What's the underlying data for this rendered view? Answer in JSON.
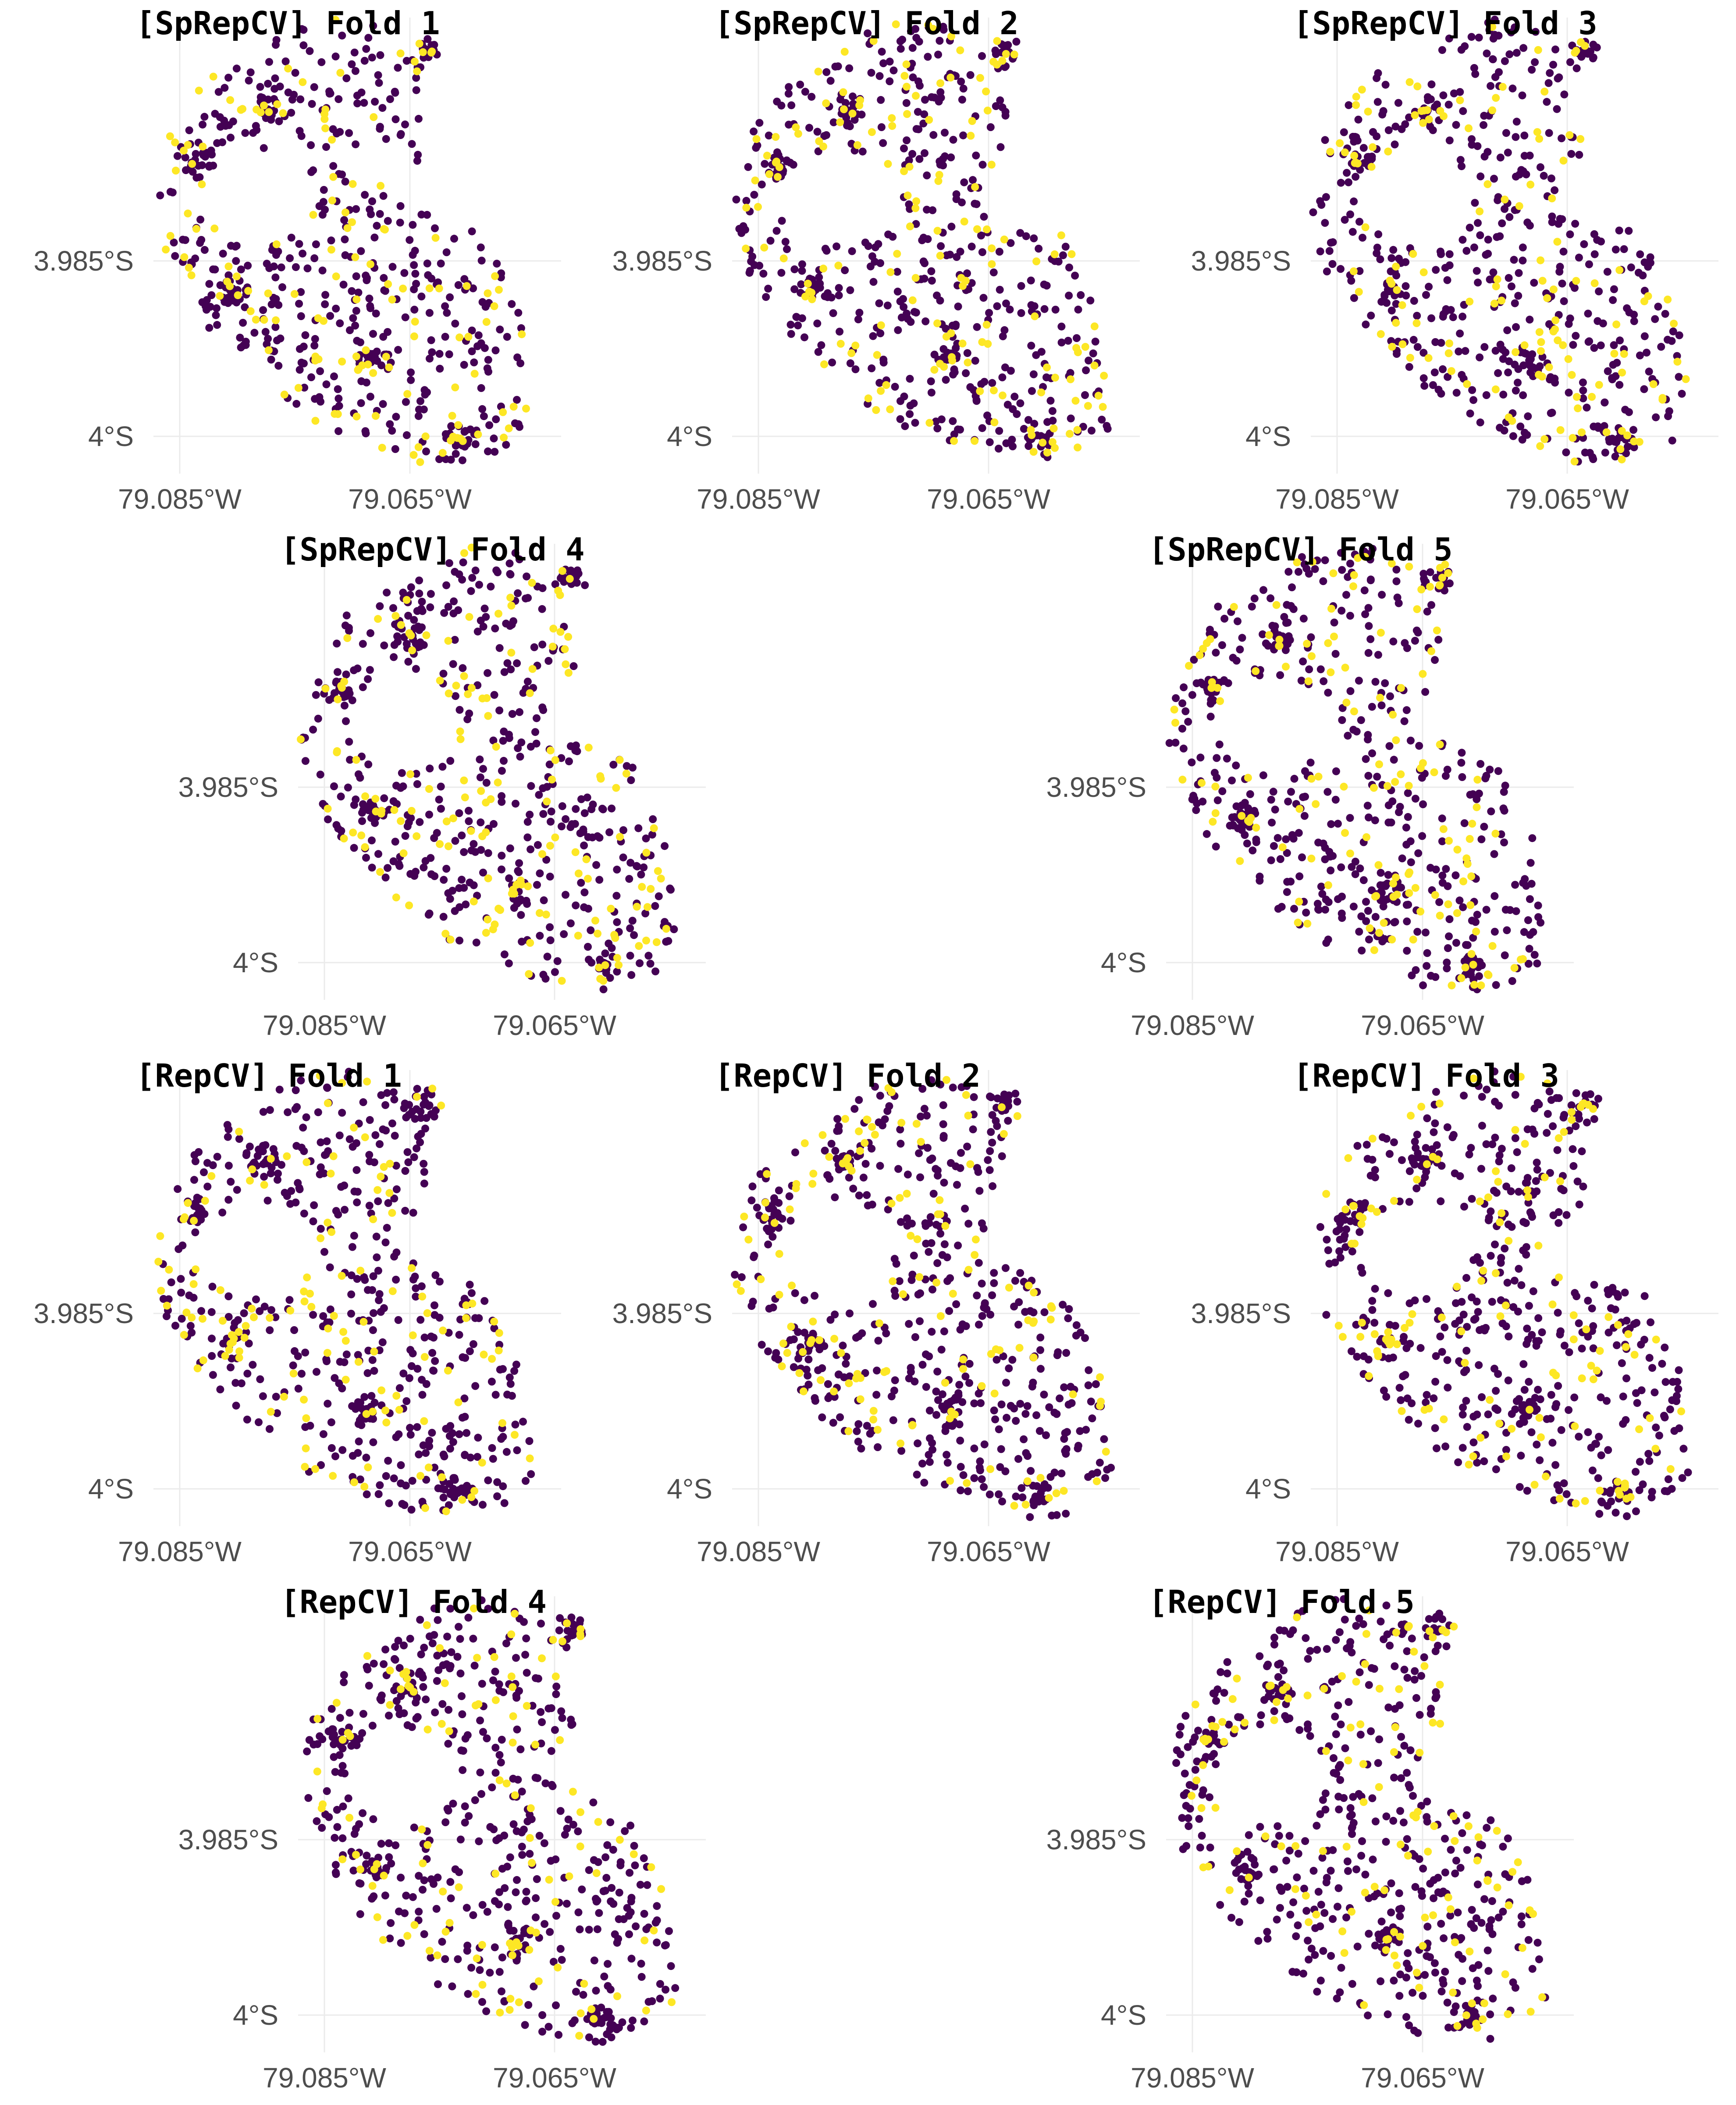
{
  "figure": {
    "colors": {
      "training": "#440154",
      "test": "#fde725",
      "grid": "#ebebeb",
      "tick_text": "#4d4d4d"
    }
  },
  "chart_data": [
    {
      "type": "scatter",
      "title": "[SpRepCV] Fold 1",
      "seed": 11,
      "x_ticks": [
        "79.085°W",
        "79.065°W"
      ],
      "y_ticks": [
        "3.985°S",
        "4°S"
      ]
    },
    {
      "type": "scatter",
      "title": "[SpRepCV] Fold 2",
      "seed": 23,
      "x_ticks": [
        "79.085°W",
        "79.065°W"
      ],
      "y_ticks": [
        "3.985°S",
        "4°S"
      ]
    },
    {
      "type": "scatter",
      "title": "[SpRepCV] Fold 3",
      "seed": 37,
      "x_ticks": [
        "79.085°W",
        "79.065°W"
      ],
      "y_ticks": [
        "3.985°S",
        "4°S"
      ]
    },
    {
      "type": "scatter",
      "title": "[SpRepCV] Fold 4",
      "seed": 41,
      "x_ticks": [
        "79.085°W",
        "79.065°W"
      ],
      "y_ticks": [
        "3.985°S",
        "4°S"
      ]
    },
    {
      "type": "scatter",
      "title": "[SpRepCV] Fold 5",
      "seed": 53,
      "x_ticks": [
        "79.085°W",
        "79.065°W"
      ],
      "y_ticks": [
        "3.985°S",
        "4°S"
      ]
    },
    {
      "type": "scatter",
      "title": "[RepCV] Fold 1",
      "seed": 67,
      "x_ticks": [
        "79.085°W",
        "79.065°W"
      ],
      "y_ticks": [
        "3.985°S",
        "4°S"
      ]
    },
    {
      "type": "scatter",
      "title": "[RepCV] Fold 2",
      "seed": 71,
      "x_ticks": [
        "79.085°W",
        "79.065°W"
      ],
      "y_ticks": [
        "3.985°S",
        "4°S"
      ]
    },
    {
      "type": "scatter",
      "title": "[RepCV] Fold 3",
      "seed": 83,
      "x_ticks": [
        "79.085°W",
        "79.065°W"
      ],
      "y_ticks": [
        "3.985°S",
        "4°S"
      ]
    },
    {
      "type": "scatter",
      "title": "[RepCV] Fold 4",
      "seed": 97,
      "x_ticks": [
        "79.085°W",
        "79.065°W"
      ],
      "y_ticks": [
        "3.985°S",
        "4°S"
      ]
    },
    {
      "type": "scatter",
      "title": "[RepCV] Fold 5",
      "seed": 101,
      "x_ticks": [
        "79.085°W",
        "79.065°W"
      ],
      "y_ticks": [
        "3.985°S",
        "4°S"
      ]
    }
  ]
}
